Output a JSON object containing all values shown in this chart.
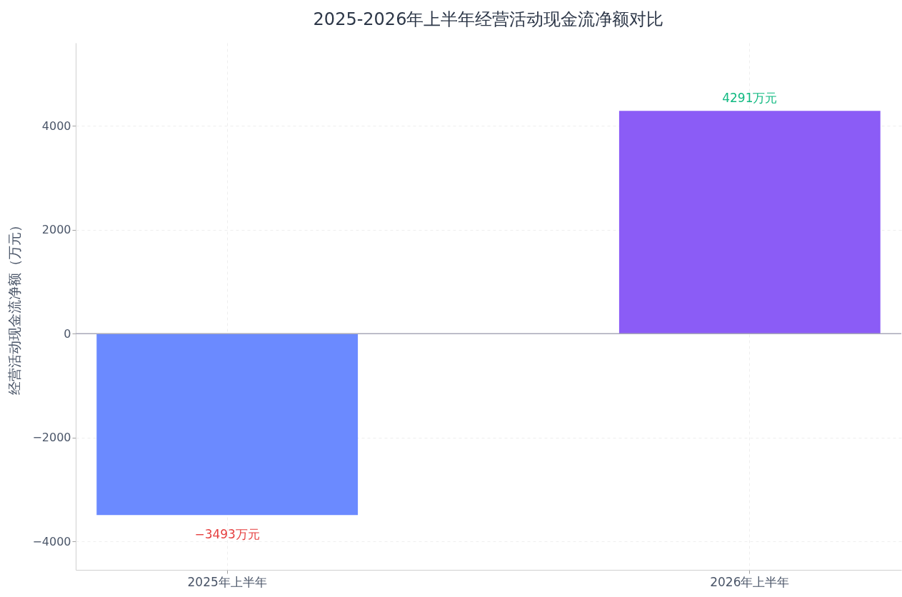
{
  "chart_data": {
    "type": "bar",
    "title": "2025-2026年上半年经营活动现金流净额对比",
    "ylabel": "经营活动现金流净额（万元）",
    "categories": [
      "2025年上半年",
      "2026年上半年"
    ],
    "values": [
      -3493,
      4291
    ],
    "colors": [
      "#6b8aff",
      "#8b5cf6"
    ],
    "value_labels": [
      "−3493万元",
      "4291万元"
    ],
    "ylim": [
      -4550,
      5600
    ],
    "yticks": [
      {
        "value": -4000,
        "label": "−4000"
      },
      {
        "value": -2000,
        "label": "−2000"
      },
      0,
      2000,
      4000
    ],
    "ref_lines": [
      {
        "axis": "y",
        "value": 0,
        "color": "#a8a8b8"
      }
    ],
    "grid": true
  }
}
